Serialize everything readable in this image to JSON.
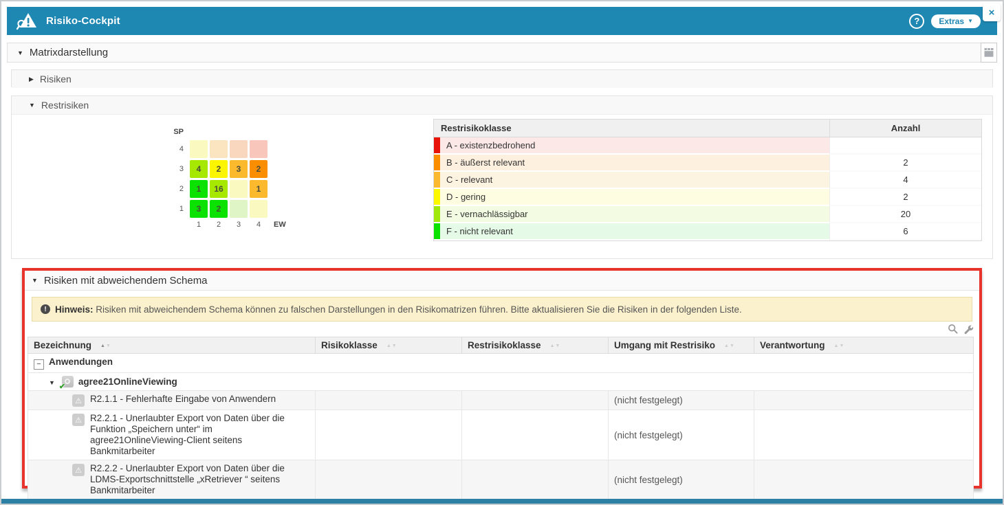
{
  "accent_color": "#1E87B2",
  "highlight_border_color": "#E8322C",
  "window": {
    "title": "Risiko-Cockpit",
    "help_label": "?",
    "extras_label": "Extras",
    "close_label": "×"
  },
  "sections": {
    "matrixdarstellung": "Matrixdarstellung",
    "risiken": "Risiken",
    "restrisiken": "Restrisiken",
    "schema": "Risiken mit abweichendem Schema"
  },
  "matrix": {
    "y_axis_label": "SP",
    "x_axis_label": "EW",
    "y_ticks": [
      "4",
      "3",
      "2",
      "1"
    ],
    "x_ticks": [
      "1",
      "2",
      "3",
      "4"
    ],
    "rows": [
      {
        "sp": "4",
        "cells": [
          {
            "value": "",
            "color": "#FAF9C0"
          },
          {
            "value": "",
            "color": "#FAE5C0"
          },
          {
            "value": "",
            "color": "#F9D6BE"
          },
          {
            "value": "",
            "color": "#F8C6BA"
          }
        ]
      },
      {
        "sp": "3",
        "cells": [
          {
            "value": "4",
            "color": "#A6E800"
          },
          {
            "value": "2",
            "color": "#FCF500"
          },
          {
            "value": "3",
            "color": "#FBB92E"
          },
          {
            "value": "2",
            "color": "#FB8E00"
          }
        ]
      },
      {
        "sp": "2",
        "cells": [
          {
            "value": "1",
            "color": "#0CE202"
          },
          {
            "value": "16",
            "color": "#A6E800"
          },
          {
            "value": "",
            "color": "#FAF9C0"
          },
          {
            "value": "1",
            "color": "#FBB92E"
          }
        ]
      },
      {
        "sp": "1",
        "cells": [
          {
            "value": "3",
            "color": "#0CE202"
          },
          {
            "value": "2",
            "color": "#0CE202"
          },
          {
            "value": "",
            "color": "#DFF5C6"
          },
          {
            "value": "",
            "color": "#FAF9C0"
          }
        ]
      }
    ]
  },
  "rest_table": {
    "header_class": "Restrisikoklasse",
    "header_count": "Anzahl",
    "rows": [
      {
        "label": "A - existenzbedrohend",
        "count": "",
        "strip": "#E81309",
        "bg": "#FCE9E7"
      },
      {
        "label": "B - äußerst relevant",
        "count": "2",
        "strip": "#FB8E00",
        "bg": "#FDF0DF"
      },
      {
        "label": "C - relevant",
        "count": "4",
        "strip": "#FBB930",
        "bg": "#FDF3E1"
      },
      {
        "label": "D - gering",
        "count": "2",
        "strip": "#FCF800",
        "bg": "#FEFDE1"
      },
      {
        "label": "E - vernachlässigbar",
        "count": "20",
        "strip": "#A0E80C",
        "bg": "#F3FBE2"
      },
      {
        "label": "F - nicht relevant",
        "count": "6",
        "strip": "#0CE202",
        "bg": "#E5FBE8"
      }
    ]
  },
  "hint": {
    "prefix": "Hinweis:",
    "text": "Risiken mit abweichendem Schema können zu falschen Darstellungen in den Risikomatrizen führen. Bitte aktualisieren Sie die Risiken in der folgenden Liste."
  },
  "schema_table": {
    "headers": [
      "Bezeichnung",
      "Risikoklasse",
      "Restrisikoklasse",
      "Umgang mit Restrisiko",
      "Verantwortung"
    ],
    "group_label": "Anwendungen",
    "subgroup_label": "agree21OnlineViewing",
    "rows": [
      {
        "bezeichnung": "R2.1.1 - Fehlerhafte Eingabe von Anwendern",
        "risikoklasse": "",
        "restrisikoklasse": "",
        "umgang": "(nicht festgelegt)",
        "verantwortung": ""
      },
      {
        "bezeichnung": "R2.2.1 - Unerlaubter Export von Daten über die Funktion „Speichern unter“ im agree21OnlineViewing-Client seitens Bankmitarbeiter",
        "risikoklasse": "",
        "restrisikoklasse": "",
        "umgang": "(nicht festgelegt)",
        "verantwortung": ""
      },
      {
        "bezeichnung": "R2.2.2 - Unerlaubter Export von Daten über die LDMS-Exportschnittstelle „xRetriever “ seitens Bankmitarbeiter",
        "risikoklasse": "",
        "restrisikoklasse": "",
        "umgang": "(nicht festgelegt)",
        "verantwortung": ""
      }
    ]
  }
}
